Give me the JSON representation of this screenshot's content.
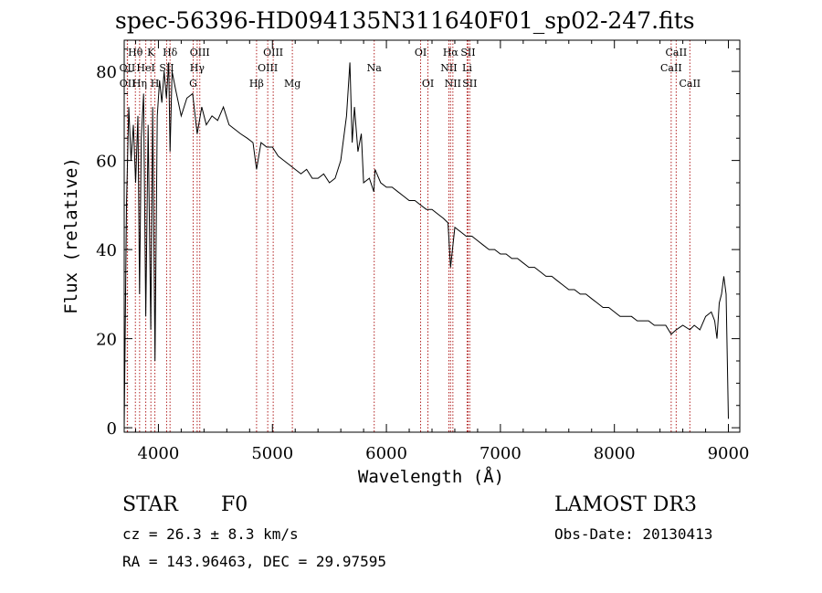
{
  "title": "spec-56396-HD094135N311640F01_sp02-247.fits",
  "info": {
    "class_label": "STAR",
    "subclass": "F0",
    "survey": "LAMOST DR3",
    "cz": "cz = 26.3 ± 8.3 km/s",
    "obs_date": "Obs-Date: 20130413",
    "coords": "RA = 143.96463, DEC =  29.97595"
  },
  "colors": {
    "spectrum": "#000000",
    "line_markers": "#b22222",
    "axes": "#000000"
  },
  "chart_data": {
    "type": "line",
    "title": "spec-56396-HD094135N311640F01_sp02-247.fits",
    "xlabel": "Wavelength (Å)",
    "ylabel": "Flux (relative)",
    "xlim": [
      3700,
      9100
    ],
    "ylim": [
      -1,
      87
    ],
    "xticks": [
      4000,
      5000,
      6000,
      7000,
      8000,
      9000
    ],
    "yticks": [
      0,
      20,
      40,
      60,
      80
    ],
    "grid": false,
    "series": [
      {
        "name": "flux",
        "x": [
          3700,
          3720,
          3740,
          3760,
          3780,
          3800,
          3820,
          3835,
          3850,
          3870,
          3889,
          3910,
          3933,
          3950,
          3970,
          3990,
          4010,
          4030,
          4050,
          4070,
          4090,
          4102,
          4120,
          4150,
          4200,
          4250,
          4300,
          4340,
          4380,
          4420,
          4470,
          4520,
          4570,
          4620,
          4670,
          4720,
          4780,
          4830,
          4861,
          4900,
          4950,
          5000,
          5050,
          5100,
          5150,
          5200,
          5250,
          5300,
          5350,
          5400,
          5450,
          5500,
          5550,
          5600,
          5650,
          5680,
          5700,
          5720,
          5750,
          5780,
          5800,
          5850,
          5890,
          5900,
          5950,
          6000,
          6050,
          6100,
          6150,
          6200,
          6250,
          6300,
          6350,
          6400,
          6450,
          6500,
          6540,
          6563,
          6600,
          6650,
          6700,
          6750,
          6800,
          6850,
          6900,
          6950,
          7000,
          7050,
          7100,
          7150,
          7200,
          7250,
          7300,
          7350,
          7400,
          7450,
          7500,
          7550,
          7600,
          7650,
          7700,
          7750,
          7800,
          7850,
          7900,
          7950,
          8000,
          8050,
          8100,
          8150,
          8200,
          8250,
          8300,
          8350,
          8400,
          8450,
          8498,
          8542,
          8600,
          8662,
          8700,
          8750,
          8800,
          8850,
          8880,
          8900,
          8920,
          8940,
          8960,
          8980,
          9000
        ],
        "y": [
          0,
          50,
          72,
          60,
          68,
          55,
          70,
          30,
          65,
          75,
          25,
          68,
          22,
          72,
          15,
          70,
          78,
          73,
          80,
          74,
          82,
          62,
          80,
          76,
          70,
          74,
          75,
          66,
          72,
          68,
          70,
          69,
          72,
          68,
          67,
          66,
          65,
          64,
          58,
          64,
          63,
          63,
          61,
          60,
          59,
          58,
          57,
          58,
          56,
          56,
          57,
          55,
          56,
          60,
          70,
          82,
          64,
          72,
          62,
          66,
          55,
          56,
          53,
          58,
          55,
          54,
          54,
          53,
          52,
          51,
          51,
          50,
          49,
          49,
          48,
          47,
          46,
          36,
          45,
          44,
          43,
          43,
          42,
          41,
          40,
          40,
          39,
          39,
          38,
          38,
          37,
          36,
          36,
          35,
          34,
          34,
          33,
          32,
          31,
          31,
          30,
          30,
          29,
          28,
          27,
          27,
          26,
          25,
          25,
          25,
          24,
          24,
          24,
          23,
          23,
          23,
          21,
          22,
          23,
          22,
          23,
          22,
          25,
          26,
          24,
          20,
          28,
          30,
          34,
          30,
          2
        ]
      }
    ],
    "line_markers": [
      {
        "label": "Hθ",
        "wavelength": 3798,
        "row": 0
      },
      {
        "label": "K",
        "wavelength": 3934,
        "row": 0
      },
      {
        "label": "Hδ",
        "wavelength": 4102,
        "row": 0
      },
      {
        "label": "OIII",
        "wavelength": 4363,
        "row": 0
      },
      {
        "label": "OIII",
        "wavelength": 5007,
        "row": 0
      },
      {
        "label": "OI",
        "wavelength": 6300,
        "row": 0
      },
      {
        "label": "Hα",
        "wavelength": 6563,
        "row": 0
      },
      {
        "label": "SII",
        "wavelength": 6716,
        "row": 0
      },
      {
        "label": "CaII",
        "wavelength": 8542,
        "row": 0
      },
      {
        "label": "OII",
        "wavelength": 3727,
        "row": 1
      },
      {
        "label": "HeI",
        "wavelength": 3889,
        "row": 1
      },
      {
        "label": "SII",
        "wavelength": 4072,
        "row": 1
      },
      {
        "label": "Hγ",
        "wavelength": 4340,
        "row": 1
      },
      {
        "label": "OIII",
        "wavelength": 4959,
        "row": 1
      },
      {
        "label": "Na",
        "wavelength": 5893,
        "row": 1
      },
      {
        "label": "NII",
        "wavelength": 6548,
        "row": 1
      },
      {
        "label": "Li",
        "wavelength": 6708,
        "row": 1
      },
      {
        "label": "CaII",
        "wavelength": 8498,
        "row": 1
      },
      {
        "label": "OII",
        "wavelength": 3729,
        "row": 2
      },
      {
        "label": "Hη",
        "wavelength": 3835,
        "row": 2
      },
      {
        "label": "H",
        "wavelength": 3969,
        "row": 2
      },
      {
        "label": "G",
        "wavelength": 4305,
        "row": 2
      },
      {
        "label": "Hβ",
        "wavelength": 4861,
        "row": 2
      },
      {
        "label": "Mg",
        "wavelength": 5175,
        "row": 2
      },
      {
        "label": "OI",
        "wavelength": 6364,
        "row": 2
      },
      {
        "label": "NII",
        "wavelength": 6583,
        "row": 2
      },
      {
        "label": "SII",
        "wavelength": 6731,
        "row": 2
      },
      {
        "label": "CaII",
        "wavelength": 8662,
        "row": 2
      }
    ]
  }
}
